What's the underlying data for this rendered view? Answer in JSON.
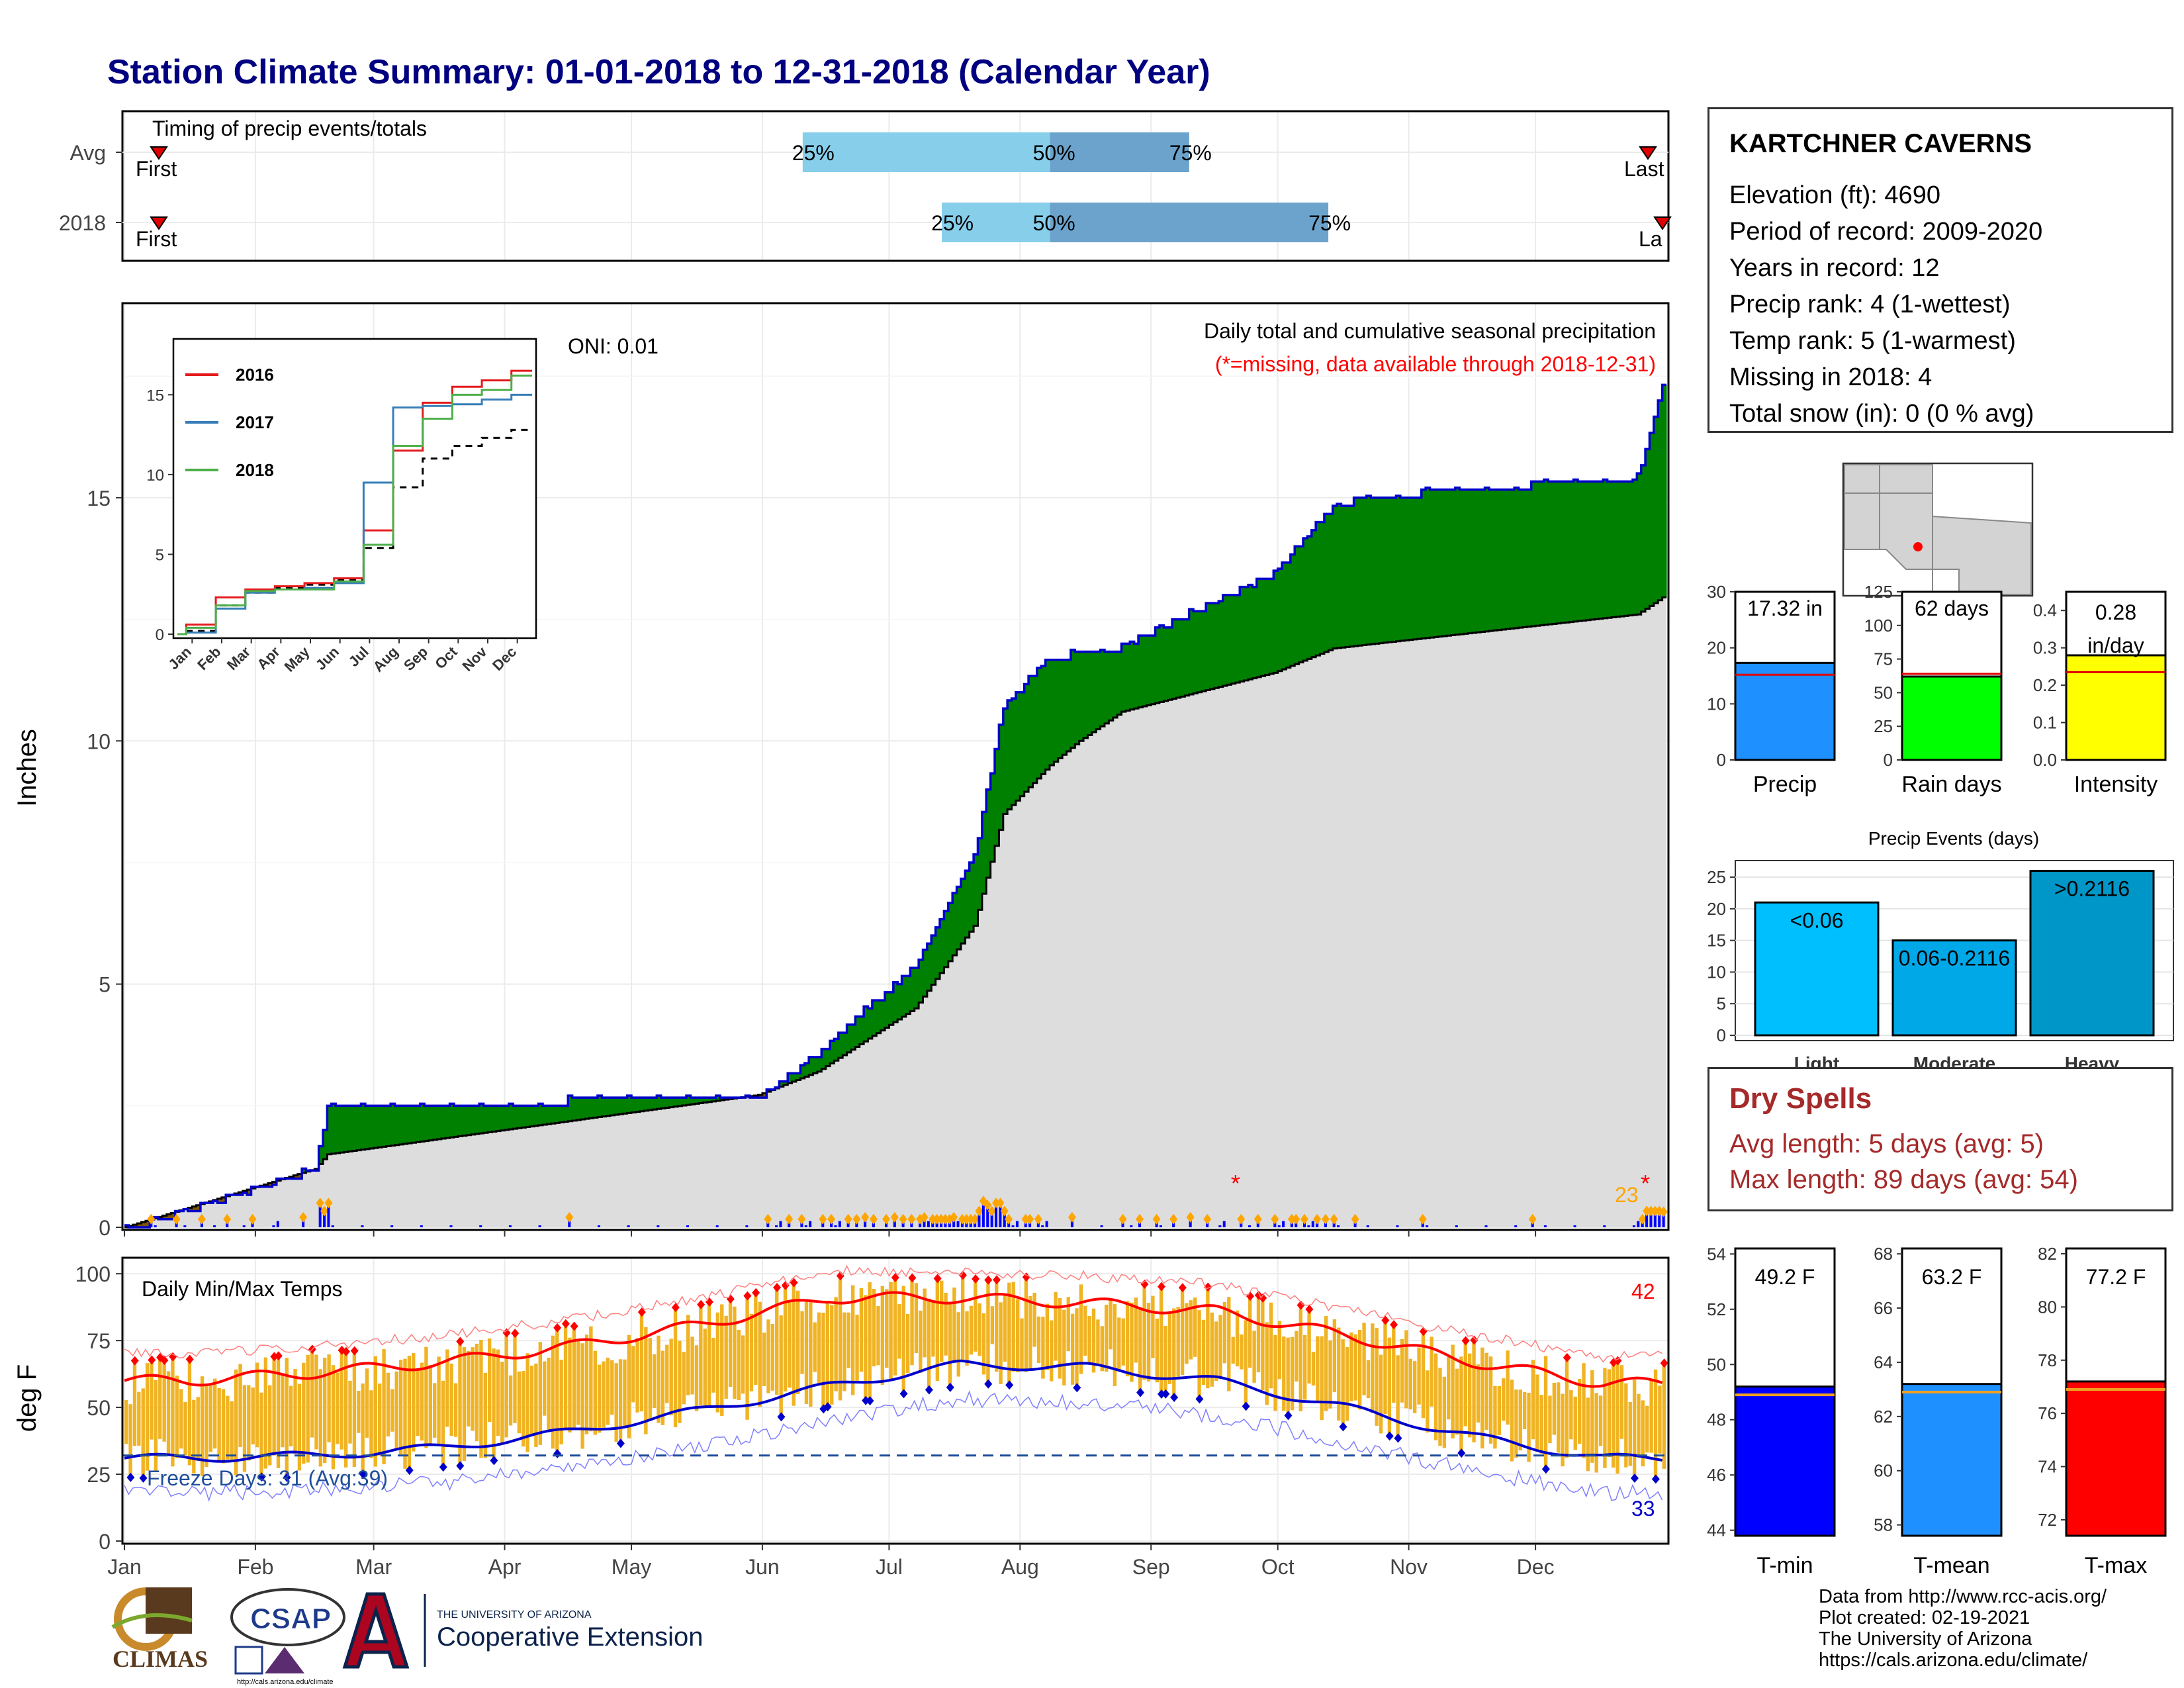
{
  "title": "Station Climate Summary: 01-01-2018 to 12-31-2018 (Calendar Year)",
  "timing": {
    "label": "Timing of precip events/totals",
    "rows": [
      {
        "name": "Avg",
        "first_label": "First",
        "last_label": "Last",
        "p25_label": "25%",
        "p50_label": "50%",
        "p75_label": "75%",
        "p25": 0.44,
        "p50": 0.6,
        "p75": 0.69
      },
      {
        "name": "2018",
        "first_label": "First",
        "last_label": "Last",
        "p25_label": "25%",
        "p50_label": "50%",
        "p75_label": "75%",
        "p25": 0.53,
        "p50": 0.6,
        "p75": 0.78
      }
    ]
  },
  "station": {
    "name": "KARTCHNER CAVERNS",
    "lines": [
      "Elevation (ft): 4690",
      "Period of record: 2009-2020",
      "Years in record: 12",
      "Precip rank: 4 (1-wettest)",
      "Temp rank: 5 (1-warmest)",
      "Missing in 2018: 4",
      "Total snow (in): 0 (0 % avg)"
    ]
  },
  "precip_panel": {
    "title": "Daily total and cumulative seasonal precipitation",
    "subtitle": "(*=missing, data available through 2018-12-31)",
    "oni": "ONI: 0.01",
    "ylabel": "Inches",
    "yticks": [
      "0",
      "5",
      "10",
      "15"
    ],
    "count_label": "23",
    "colors": {
      "above": "#008000",
      "below": "#7F5500",
      "normal": "#DDDDDD",
      "line": "#0000CC",
      "bars": "#0000FF",
      "dots": "#FFA500",
      "missing": "#FF0000"
    }
  },
  "inset": {
    "yticks": [
      "0",
      "5",
      "10",
      "15"
    ],
    "months": [
      "Jan",
      "Feb",
      "Mar",
      "Apr",
      "May",
      "Jun",
      "Jul",
      "Aug",
      "Sep",
      "Oct",
      "Nov",
      "Dec"
    ],
    "legend": [
      {
        "name": "2016",
        "color": "#E41A1C"
      },
      {
        "name": "2017",
        "color": "#377EB8"
      },
      {
        "name": "2018",
        "color": "#4DAF4A"
      }
    ]
  },
  "temp_panel": {
    "title": "Daily Min/Max Temps",
    "ylabel": "deg F",
    "yticks": [
      "0",
      "25",
      "50",
      "75",
      "100"
    ],
    "freeze": "Freeze Days: 31 (Avg:39)",
    "hot_count": "42",
    "cold_count": "33"
  },
  "months": [
    "Jan",
    "Feb",
    "Mar",
    "Apr",
    "May",
    "Jun",
    "Jul",
    "Aug",
    "Sep",
    "Oct",
    "Nov",
    "Dec"
  ],
  "summary_bars": [
    {
      "name": "Precip",
      "value": 17.32,
      "label": "17.32 in",
      "avg": 15.2,
      "ymax": 30,
      "ticks": [
        "0",
        "10",
        "20",
        "30"
      ],
      "color": "#1E90FF"
    },
    {
      "name": "Rain days",
      "value": 62,
      "label": "62 days",
      "avg": 64,
      "ymax": 125,
      "ticks": [
        "0",
        "25",
        "50",
        "75",
        "100",
        "125"
      ],
      "color": "#00FF00"
    },
    {
      "name": "Intensity",
      "value": 0.28,
      "label": "0.28 in/day",
      "avg": 0.235,
      "ymax": 0.45,
      "ticks": [
        "0.0",
        "0.1",
        "0.2",
        "0.3",
        "0.4"
      ],
      "color": "#FFFF00"
    }
  ],
  "events": {
    "title": "Precip Events (days)",
    "ticks": [
      "0",
      "5",
      "10",
      "15",
      "20",
      "25"
    ],
    "bars": [
      {
        "cat": "Light",
        "label": "<0.06",
        "value": 21,
        "color": "#00BFFF"
      },
      {
        "cat": "Moderate",
        "label": "0.06-0.2116",
        "value": 15,
        "color": "#00A8E8"
      },
      {
        "cat": "Heavy",
        "label": ">0.2116",
        "value": 26,
        "color": "#0096C8"
      }
    ]
  },
  "dry_spells": {
    "title": "Dry Spells",
    "avg": "Avg length: 5 days (avg: 5)",
    "max": "Max length: 89 days (avg: 54)"
  },
  "temp_bars": [
    {
      "name": "T-min",
      "value": 49.2,
      "label": "49.2 F",
      "avg": 48.9,
      "ymin": 43.8,
      "ymax": 54.2,
      "ticks": [
        "44",
        "46",
        "48",
        "50",
        "52",
        "54"
      ],
      "color": "#0000FF"
    },
    {
      "name": "T-mean",
      "value": 63.2,
      "label": "63.2 F",
      "avg": 62.9,
      "ymin": 57.6,
      "ymax": 68.2,
      "ticks": [
        "58",
        "60",
        "62",
        "64",
        "66",
        "68"
      ],
      "color": "#1E90FF"
    },
    {
      "name": "T-max",
      "value": 77.2,
      "label": "77.2 F",
      "avg": 76.9,
      "ymin": 71.4,
      "ymax": 82.2,
      "ticks": [
        "72",
        "74",
        "76",
        "78",
        "80",
        "82"
      ],
      "color": "#FF0000"
    }
  ],
  "logos": {
    "climas": "CLIMAS",
    "csap": "CSAP",
    "ua_small": "THE UNIVERSITY OF ARIZONA",
    "ua_big": "Cooperative Extension",
    "csap_url": "http://cals.arizona.edu/climate"
  },
  "credits": [
    "Data from http://www.rcc-acis.org/",
    "Plot created: 02-19-2021",
    "The University of Arizona",
    "https://cals.arizona.edu/climate/"
  ],
  "chart_data": [
    {
      "type": "area",
      "title": "Daily total and cumulative seasonal precipitation",
      "ylabel": "Inches",
      "ylim": [
        0,
        19
      ],
      "x": [
        "Jan 1",
        "Feb 15",
        "Feb 18",
        "May 31",
        "Jun 14",
        "Jul 7",
        "Jul 21",
        "Jul 28",
        "Aug 8",
        "Aug 15",
        "Aug 25",
        "Sep 30",
        "Oct 14",
        "Oct 24",
        "Dec 25",
        "Dec 31"
      ],
      "series": [
        {
          "name": "",
          "values": [
            0,
            1.25,
            2.6,
            2.72,
            3.65,
            5.45,
            7.7,
            10.8,
            11.8,
            11.85,
            12.0,
            13.5,
            14.9,
            15.1,
            15.5,
            17.32
          ]
        },
        {
          "name": "",
          "values": [
            0,
            1.2,
            1.5,
            2.72,
            3.2,
            4.5,
            6.2,
            8.5,
            9.5,
            10.0,
            10.6,
            11.4,
            11.9,
            12.0,
            12.6,
            12.95
          ]
        }
      ]
    },
    {
      "type": "line",
      "title": "",
      "ylim": [
        0,
        18
      ],
      "x": [
        "Jan",
        "Feb",
        "Mar",
        "Apr",
        "May",
        "Jun",
        "Jul",
        "Aug",
        "Sep",
        "Oct",
        "Nov",
        "Dec"
      ],
      "series": [
        {
          "name": "2016",
          "values": [
            0.6,
            2.3,
            2.8,
            3.0,
            3.2,
            3.5,
            6.5,
            11.5,
            14.5,
            15.5,
            15.9,
            16.5
          ]
        },
        {
          "name": "2017",
          "values": [
            0.1,
            1.6,
            2.6,
            2.8,
            2.9,
            3.2,
            9.5,
            14.2,
            14.3,
            14.4,
            14.7,
            15.0
          ]
        },
        {
          "name": "2018",
          "values": [
            0.4,
            1.8,
            2.7,
            2.8,
            2.8,
            3.3,
            5.6,
            11.8,
            13.5,
            15.0,
            15.3,
            16.2
          ]
        }
      ]
    },
    {
      "type": "line",
      "title": "Daily Min/Max Temps",
      "ylabel": "deg F",
      "ylim": [
        0,
        105
      ],
      "x": [
        "Jan",
        "Feb",
        "Mar",
        "Apr",
        "May",
        "Jun",
        "Jul",
        "Aug",
        "Sep",
        "Oct",
        "Nov",
        "Dec"
      ],
      "series": [
        {
          "name": "",
          "values": [
            60,
            63,
            67,
            73,
            81,
            91,
            91,
            89,
            86,
            77,
            67,
            59
          ]
        },
        {
          "name": "",
          "values": [
            31,
            32,
            35,
            41,
            49,
            58,
            66,
            65,
            60,
            50,
            39,
            31
          ]
        }
      ]
    }
  ]
}
